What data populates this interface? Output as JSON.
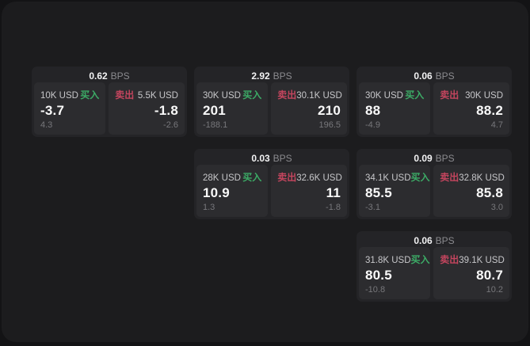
{
  "colors": {
    "buy": "#3cab66",
    "sell": "#c4455e",
    "background": "#1c1c1e",
    "card": "#242427",
    "panel": "#2c2c2f"
  },
  "cards": [
    {
      "bps": "0.62",
      "unit": "BPS",
      "buy": {
        "amount": "10K USD",
        "label": "买入",
        "value": "-3.7",
        "delta": "4.3"
      },
      "sell": {
        "label": "卖出",
        "amount": "5.5K USD",
        "value": "-1.8",
        "delta": "-2.6"
      }
    },
    {
      "bps": "2.92",
      "unit": "BPS",
      "buy": {
        "amount": "30K USD",
        "label": "买入",
        "value": "201",
        "delta": "-188.1"
      },
      "sell": {
        "label": "卖出",
        "amount": "30.1K USD",
        "value": "210",
        "delta": "196.5"
      }
    },
    {
      "bps": "0.06",
      "unit": "BPS",
      "buy": {
        "amount": "30K USD",
        "label": "买入",
        "value": "88",
        "delta": "-4.9"
      },
      "sell": {
        "label": "卖出",
        "amount": "30K USD",
        "value": "88.2",
        "delta": "4.7"
      }
    },
    {
      "bps": "0.03",
      "unit": "BPS",
      "buy": {
        "amount": "28K USD",
        "label": "买入",
        "value": "10.9",
        "delta": "1.3"
      },
      "sell": {
        "label": "卖出",
        "amount": "32.6K USD",
        "value": "11",
        "delta": "-1.8"
      }
    },
    {
      "bps": "0.09",
      "unit": "BPS",
      "buy": {
        "amount": "34.1K USD",
        "label": "买入",
        "value": "85.5",
        "delta": "-3.1"
      },
      "sell": {
        "label": "卖出",
        "amount": "32.8K USD",
        "value": "85.8",
        "delta": "3.0"
      }
    },
    {
      "bps": "0.06",
      "unit": "BPS",
      "buy": {
        "amount": "31.8K USD",
        "label": "买入",
        "value": "80.5",
        "delta": "-10.8"
      },
      "sell": {
        "label": "卖出",
        "amount": "39.1K USD",
        "value": "80.7",
        "delta": "10.2"
      }
    }
  ]
}
